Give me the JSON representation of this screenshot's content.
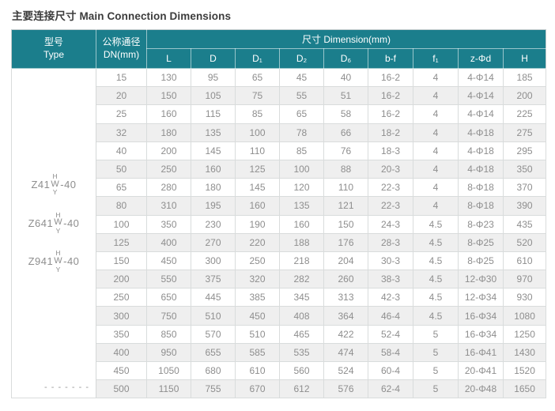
{
  "page": {
    "title": "主要连接尺寸 Main Connection Dimensions"
  },
  "colors": {
    "header_teal": "#1b7e8c",
    "row_stripe": "#efefef",
    "body_text_gray": "#8e8e8e",
    "title_text": "#3c3c3c"
  },
  "table": {
    "header": {
      "type_cn": "型号",
      "type_en": "Type",
      "dn_cn": "公称通径",
      "dn_en": "DN(mm)",
      "dimension_label": "尺寸 Dimension(mm)",
      "columns": [
        "L",
        "D",
        "D₁",
        "D₂",
        "D₆",
        "b-f",
        "f₁",
        "z-Φd",
        "H"
      ]
    },
    "models": [
      {
        "prefix": "Z41",
        "stack_top": "H",
        "stack_mid": "W",
        "stack_bottom": "Y",
        "suffix": "-40"
      },
      {
        "prefix": "Z641",
        "stack_top": "H",
        "stack_mid": "W",
        "stack_bottom": "Y",
        "suffix": "-40"
      },
      {
        "prefix": "Z941",
        "stack_top": "H",
        "stack_mid": "W",
        "stack_bottom": "Y",
        "suffix": "-40"
      }
    ],
    "type_footnote": "- - - - - - -",
    "rows": [
      [
        "15",
        "130",
        "95",
        "65",
        "45",
        "40",
        "16-2",
        "4",
        "4-Φ14",
        "185"
      ],
      [
        "20",
        "150",
        "105",
        "75",
        "55",
        "51",
        "16-2",
        "4",
        "4-Φ14",
        "200"
      ],
      [
        "25",
        "160",
        "115",
        "85",
        "65",
        "58",
        "16-2",
        "4",
        "4-Φ14",
        "225"
      ],
      [
        "32",
        "180",
        "135",
        "100",
        "78",
        "66",
        "18-2",
        "4",
        "4-Φ18",
        "275"
      ],
      [
        "40",
        "200",
        "145",
        "110",
        "85",
        "76",
        "18-3",
        "4",
        "4-Φ18",
        "295"
      ],
      [
        "50",
        "250",
        "160",
        "125",
        "100",
        "88",
        "20-3",
        "4",
        "4-Φ18",
        "350"
      ],
      [
        "65",
        "280",
        "180",
        "145",
        "120",
        "110",
        "22-3",
        "4",
        "8-Φ18",
        "370"
      ],
      [
        "80",
        "310",
        "195",
        "160",
        "135",
        "121",
        "22-3",
        "4",
        "8-Φ18",
        "390"
      ],
      [
        "100",
        "350",
        "230",
        "190",
        "160",
        "150",
        "24-3",
        "4.5",
        "8-Φ23",
        "435"
      ],
      [
        "125",
        "400",
        "270",
        "220",
        "188",
        "176",
        "28-3",
        "4.5",
        "8-Φ25",
        "520"
      ],
      [
        "150",
        "450",
        "300",
        "250",
        "218",
        "204",
        "30-3",
        "4.5",
        "8-Φ25",
        "610"
      ],
      [
        "200",
        "550",
        "375",
        "320",
        "282",
        "260",
        "38-3",
        "4.5",
        "12-Φ30",
        "970"
      ],
      [
        "250",
        "650",
        "445",
        "385",
        "345",
        "313",
        "42-3",
        "4.5",
        "12-Φ34",
        "930"
      ],
      [
        "300",
        "750",
        "510",
        "450",
        "408",
        "364",
        "46-4",
        "4.5",
        "16-Φ34",
        "1080"
      ],
      [
        "350",
        "850",
        "570",
        "510",
        "465",
        "422",
        "52-4",
        "5",
        "16-Φ34",
        "1250"
      ],
      [
        "400",
        "950",
        "655",
        "585",
        "535",
        "474",
        "58-4",
        "5",
        "16-Φ41",
        "1430"
      ],
      [
        "450",
        "1050",
        "680",
        "610",
        "560",
        "524",
        "60-4",
        "5",
        "20-Φ41",
        "1520"
      ],
      [
        "500",
        "1150",
        "755",
        "670",
        "612",
        "576",
        "62-4",
        "5",
        "20-Φ48",
        "1650"
      ]
    ]
  }
}
